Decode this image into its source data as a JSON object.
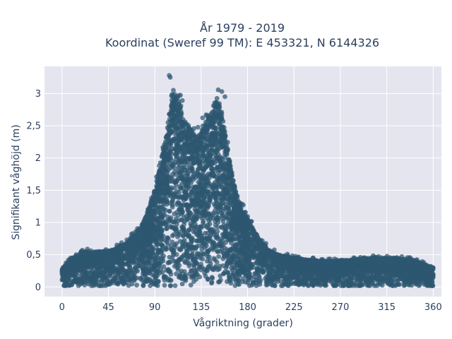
{
  "chart_data": {
    "type": "scatter",
    "title_lines": [
      "År 1979 - 2019",
      "Koordinat (Sweref 99 TM): E 453321, N 6144326"
    ],
    "xlabel": "Vågriktning (grader)",
    "ylabel": "Signifikant våghöjd (m)",
    "xlim": [
      -17,
      368
    ],
    "ylim": [
      -0.15,
      3.42
    ],
    "x_ticks": [
      0,
      45,
      90,
      135,
      180,
      225,
      270,
      315,
      360
    ],
    "x_tick_labels": [
      "0",
      "45",
      "90",
      "135",
      "180",
      "225",
      "270",
      "315",
      "360"
    ],
    "y_ticks": [
      0,
      0.5,
      1,
      1.5,
      2,
      2.5,
      3
    ],
    "y_tick_labels": [
      "0",
      "0,5",
      "1",
      "1,5",
      "2",
      "2,5",
      "3"
    ],
    "grid": true,
    "legend": false,
    "marker_color": "#2e5870",
    "background_color": "#e5e5f0",
    "envelope": {
      "direction": [
        0,
        10,
        20,
        30,
        40,
        50,
        60,
        70,
        80,
        90,
        95,
        100,
        105,
        108,
        112,
        118,
        125,
        130,
        135,
        140,
        145,
        150,
        155,
        160,
        165,
        170,
        175,
        180,
        190,
        200,
        210,
        225,
        240,
        260,
        280,
        300,
        320,
        340,
        360
      ],
      "max_height": [
        0.28,
        0.45,
        0.55,
        0.55,
        0.55,
        0.58,
        0.65,
        0.8,
        1.05,
        1.5,
        1.85,
        2.3,
        2.75,
        3.05,
        2.95,
        2.6,
        2.45,
        2.35,
        2.4,
        2.55,
        2.75,
        2.95,
        2.7,
        2.2,
        1.75,
        1.4,
        1.2,
        1.05,
        0.78,
        0.58,
        0.5,
        0.45,
        0.42,
        0.4,
        0.42,
        0.45,
        0.45,
        0.42,
        0.3
      ]
    },
    "notable_points": [
      {
        "x": 104,
        "y": 3.28
      },
      {
        "x": 105,
        "y": 3.25
      },
      {
        "x": 108,
        "y": 3.05
      },
      {
        "x": 155,
        "y": 3.03
      },
      {
        "x": 158,
        "y": 2.95
      }
    ]
  }
}
